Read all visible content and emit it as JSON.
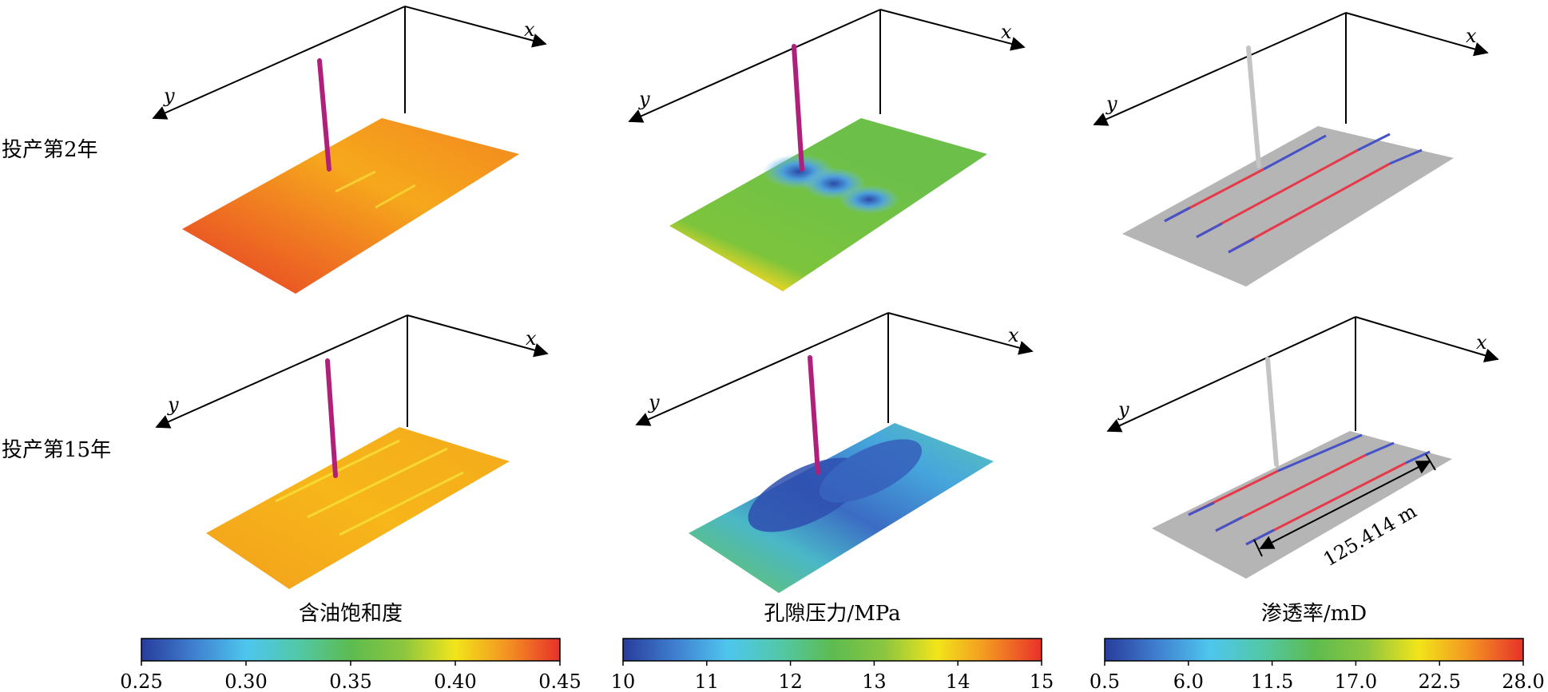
{
  "rows": [
    {
      "label": "投产第2年"
    },
    {
      "label": "投产第15年"
    }
  ],
  "axes": {
    "x": "x",
    "y": "y"
  },
  "panels": [
    {
      "title": "含油饱和度",
      "ticks": [
        "0.25",
        "0.30",
        "0.35",
        "0.40",
        "0.45"
      ]
    },
    {
      "title": "孔隙压力/MPa",
      "ticks": [
        "10",
        "11",
        "12",
        "13",
        "14",
        "15"
      ]
    },
    {
      "title": "渗透率/mD",
      "ticks": [
        "0.5",
        "6.0",
        "11.5",
        "17.0",
        "22.5",
        "28.0"
      ]
    }
  ],
  "annotation": "125.414 m",
  "colors": {
    "cbar_stops": [
      "#283c9c",
      "#3f7fcf",
      "#4ec6ee",
      "#52c8a8",
      "#5dbb50",
      "#8cc63f",
      "#f2e51a",
      "#f39222",
      "#e8302a"
    ],
    "well": "#b0207a",
    "well_gray": "#c4c4c4",
    "slab_gray": "#b5b5b5",
    "frac_red": "#e63a4a",
    "frac_blue": "#4552c8",
    "sat_row1": [
      "#e8452b",
      "#f08a20",
      "#f7b11a",
      "#f08a20"
    ],
    "sat_row2": [
      "#f5a51c",
      "#f7b51a"
    ],
    "pres_row1": [
      "#f7c41a",
      "#7cc43c",
      "#69c04a"
    ],
    "pres_row2": [
      "#6ac654",
      "#2f56b4",
      "#58c8c8"
    ]
  }
}
